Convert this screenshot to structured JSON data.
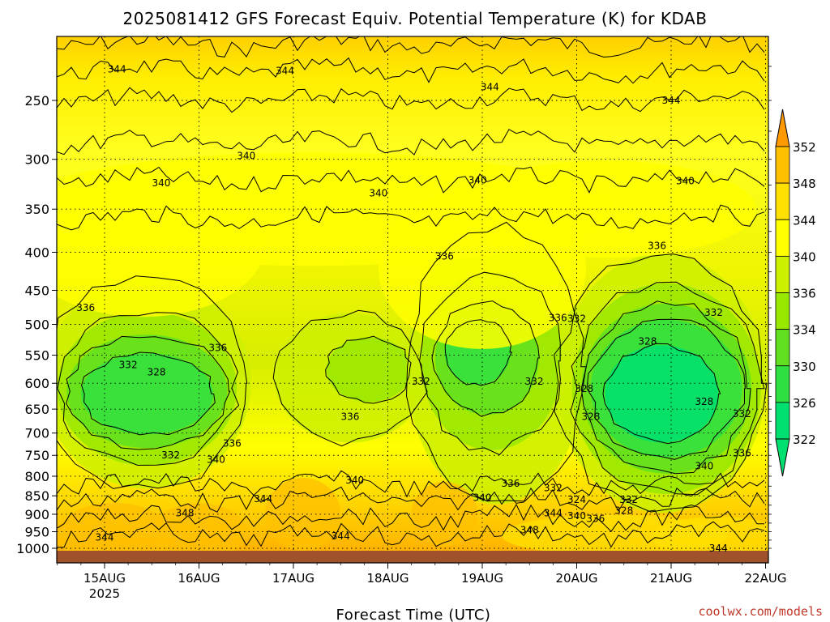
{
  "chart_data": {
    "type": "heatmap",
    "title": "2025081412 GFS Forecast Equiv. Potential Temperature (K) for KDAB",
    "xlabel": "Forecast Time (UTC)",
    "ylabel": "",
    "credit": "coolwx.com/models",
    "x_ticks": [
      "15AUG",
      "16AUG",
      "17AUG",
      "18AUG",
      "19AUG",
      "20AUG",
      "21AUG",
      "22AUG"
    ],
    "x_year_label": "2025",
    "y_ticks": [
      250,
      300,
      350,
      400,
      450,
      500,
      550,
      600,
      650,
      700,
      750,
      800,
      850,
      900,
      950,
      1000
    ],
    "y_scale": "log-pressure (inverted)",
    "grid": true,
    "colorbar": {
      "levels": [
        322,
        326,
        330,
        334,
        336,
        340,
        344,
        348,
        352
      ],
      "colors": [
        "#00e070",
        "#30e040",
        "#60e020",
        "#99e800",
        "#ccf000",
        "#ffff00",
        "#ffe000",
        "#ffc000",
        "#ff9900"
      ],
      "extend": "both",
      "placement": "right"
    },
    "contour_labels": [
      {
        "text": "344",
        "t": 0.13,
        "p": 227
      },
      {
        "text": "344",
        "t": 1.91,
        "p": 228
      },
      {
        "text": "344",
        "t": 4.08,
        "p": 240
      },
      {
        "text": "344",
        "t": 6.0,
        "p": 250
      },
      {
        "text": "340",
        "t": 0.6,
        "p": 323
      },
      {
        "text": "340",
        "t": 1.5,
        "p": 297
      },
      {
        "text": "340",
        "t": 2.9,
        "p": 333
      },
      {
        "text": "340",
        "t": 3.95,
        "p": 320
      },
      {
        "text": "340",
        "t": 6.15,
        "p": 321
      },
      {
        "text": "336",
        "t": -0.2,
        "p": 475
      },
      {
        "text": "336",
        "t": 3.6,
        "p": 405
      },
      {
        "text": "336",
        "t": 4.8,
        "p": 490
      },
      {
        "text": "336",
        "t": 5.85,
        "p": 392
      },
      {
        "text": "336",
        "t": 1.2,
        "p": 538
      },
      {
        "text": "336",
        "t": 2.6,
        "p": 665
      },
      {
        "text": "336",
        "t": 1.35,
        "p": 723
      },
      {
        "text": "336",
        "t": 4.3,
        "p": 818
      },
      {
        "text": "336",
        "t": 6.75,
        "p": 745
      },
      {
        "text": "336",
        "t": 5.2,
        "p": 912
      },
      {
        "text": "332",
        "t": 0.25,
        "p": 567
      },
      {
        "text": "332",
        "t": 3.35,
        "p": 597
      },
      {
        "text": "332",
        "t": 4.55,
        "p": 597
      },
      {
        "text": "332",
        "t": 5.0,
        "p": 491
      },
      {
        "text": "332",
        "t": 6.45,
        "p": 482
      },
      {
        "text": "332",
        "t": 0.7,
        "p": 750
      },
      {
        "text": "332",
        "t": 6.75,
        "p": 660
      },
      {
        "text": "332",
        "t": 4.75,
        "p": 830
      },
      {
        "text": "332",
        "t": 5.55,
        "p": 860
      },
      {
        "text": "328",
        "t": 0.55,
        "p": 580
      },
      {
        "text": "328",
        "t": 5.75,
        "p": 527
      },
      {
        "text": "328",
        "t": 6.35,
        "p": 635
      },
      {
        "text": "328",
        "t": 5.08,
        "p": 610
      },
      {
        "text": "328",
        "t": 5.15,
        "p": 665
      },
      {
        "text": "328",
        "t": 5.5,
        "p": 890
      },
      {
        "text": "324",
        "t": 5.0,
        "p": 860
      },
      {
        "text": "340",
        "t": 1.18,
        "p": 760
      },
      {
        "text": "340",
        "t": 2.65,
        "p": 810
      },
      {
        "text": "340",
        "t": 4.0,
        "p": 855
      },
      {
        "text": "340",
        "t": 5.0,
        "p": 905
      },
      {
        "text": "340",
        "t": 6.35,
        "p": 775
      },
      {
        "text": "344",
        "t": 0.0,
        "p": 967
      },
      {
        "text": "344",
        "t": 1.68,
        "p": 858
      },
      {
        "text": "344",
        "t": 2.5,
        "p": 963
      },
      {
        "text": "344",
        "t": 4.75,
        "p": 897
      },
      {
        "text": "344",
        "t": 6.5,
        "p": 1000
      },
      {
        "text": "348",
        "t": 0.85,
        "p": 897
      },
      {
        "text": "348",
        "t": 4.5,
        "p": 945
      }
    ]
  }
}
